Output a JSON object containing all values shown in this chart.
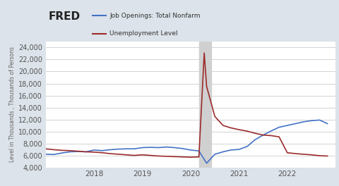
{
  "ylabel": "Level in Thousands , Thousands of Persons",
  "ylim": [
    4000,
    25000
  ],
  "yticks": [
    4000,
    6000,
    8000,
    10000,
    12000,
    14000,
    16000,
    18000,
    20000,
    22000,
    24000
  ],
  "bg_color": "#dce3ea",
  "plot_bg_color": "#ffffff",
  "shade_start": 2020.17,
  "shade_end": 2020.42,
  "legend_entries": [
    "Job Openings: Total Nonfarm",
    "Unemployment Level"
  ],
  "line_colors": [
    "#4472c4",
    "#9c2b2b"
  ],
  "jolts_x": [
    2017.0,
    2017.17,
    2017.33,
    2017.5,
    2017.67,
    2017.83,
    2018.0,
    2018.17,
    2018.33,
    2018.5,
    2018.67,
    2018.83,
    2019.0,
    2019.17,
    2019.33,
    2019.5,
    2019.67,
    2019.83,
    2020.0,
    2020.17,
    2020.33,
    2020.5,
    2020.67,
    2020.83,
    2021.0,
    2021.17,
    2021.33,
    2021.5,
    2021.67,
    2021.83,
    2022.0,
    2022.17,
    2022.33,
    2022.5,
    2022.67,
    2022.83
  ],
  "jolts_y": [
    6200,
    6150,
    6400,
    6600,
    6650,
    6600,
    6900,
    6800,
    6950,
    7050,
    7100,
    7100,
    7300,
    7350,
    7300,
    7400,
    7300,
    7150,
    6900,
    6750,
    4700,
    6200,
    6600,
    6900,
    7000,
    7500,
    8600,
    9400,
    10100,
    10700,
    11000,
    11300,
    11600,
    11800,
    11900,
    11300
  ],
  "unemp_x": [
    2017.0,
    2017.17,
    2017.33,
    2017.5,
    2017.67,
    2017.83,
    2018.0,
    2018.17,
    2018.33,
    2018.5,
    2018.67,
    2018.83,
    2019.0,
    2019.17,
    2019.33,
    2019.5,
    2019.67,
    2019.83,
    2020.0,
    2020.17,
    2020.28,
    2020.33,
    2020.5,
    2020.67,
    2020.83,
    2021.0,
    2021.17,
    2021.33,
    2021.5,
    2021.67,
    2021.83,
    2022.0,
    2022.17,
    2022.33,
    2022.5,
    2022.67,
    2022.83
  ],
  "unemp_y": [
    7100,
    6950,
    6850,
    6800,
    6700,
    6600,
    6550,
    6450,
    6300,
    6200,
    6100,
    6000,
    6100,
    6000,
    5900,
    5850,
    5800,
    5750,
    5700,
    5750,
    23100,
    17500,
    12500,
    11000,
    10600,
    10300,
    10050,
    9700,
    9400,
    9300,
    9100,
    6450,
    6300,
    6200,
    6100,
    5950,
    5900
  ],
  "xlim": [
    2017.0,
    2023.0
  ],
  "xticks": [
    2018.0,
    2019.0,
    2020.0,
    2021.0,
    2022.0
  ],
  "xticklabels": [
    "2018",
    "2019",
    "2020",
    "2021",
    "2022"
  ]
}
